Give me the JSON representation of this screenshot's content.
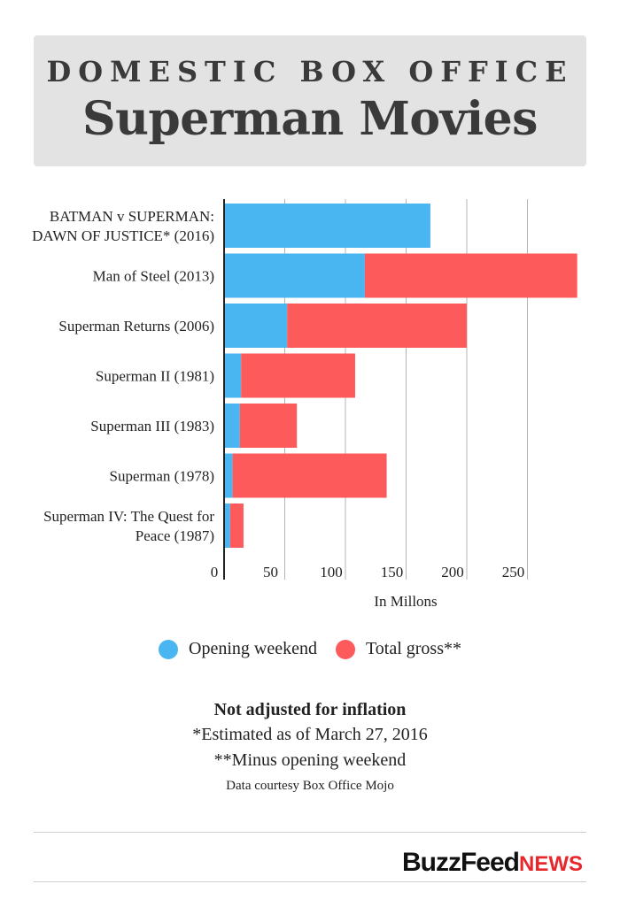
{
  "header": {
    "kicker": "DOMESTIC BOX OFFICE",
    "title": "Superman Movies"
  },
  "chart_data": {
    "type": "bar",
    "orientation": "horizontal",
    "stacked": true,
    "categories": [
      [
        "BATMAN v SUPERMAN:",
        "DAWN OF JUSTICE* (2016)"
      ],
      [
        "Man of Steel (2013)"
      ],
      [
        "Superman Returns (2006)"
      ],
      [
        "Superman II (1981)"
      ],
      [
        "Superman III (1983)"
      ],
      [
        "Superman (1978)"
      ],
      [
        "Superman IV: The Quest for",
        "Peace (1987)"
      ]
    ],
    "series": [
      {
        "name": "Opening weekend",
        "color": "#4ab6f1",
        "values": [
          170,
          116,
          52,
          14,
          13,
          7,
          5
        ]
      },
      {
        "name": "Total gross**",
        "color": "#fd5a5c",
        "values": [
          0,
          175,
          148,
          94,
          47,
          127,
          11
        ]
      }
    ],
    "xlim": [
      0,
      290
    ],
    "xticks": [
      0,
      50,
      100,
      150,
      200,
      250
    ],
    "xlabel": "In Millons",
    "grid": true,
    "legend_position": "bottom"
  },
  "notes": {
    "bold": "Not adjusted for inflation",
    "line1": "*Estimated as of March 27, 2016",
    "line2": "**Minus opening weekend",
    "source": "Data courtesy Box Office Mojo"
  },
  "brand": {
    "part1": "BuzzFeed",
    "part2": "NEWS"
  }
}
